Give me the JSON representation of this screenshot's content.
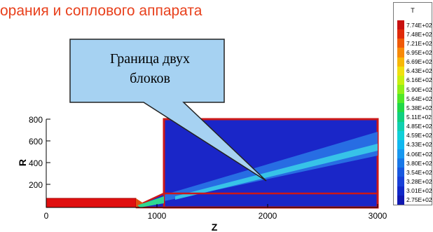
{
  "title": "орания и соплового аппарата",
  "callout": {
    "line1": "Граница двух",
    "line2": "блоков"
  },
  "axes": {
    "xlabel": "Z",
    "ylabel": "R",
    "x_ticks": [
      "0",
      "1000",
      "2000",
      "3000"
    ],
    "y_ticks": [
      "800",
      "600",
      "400",
      "200"
    ]
  },
  "legend": {
    "title": "T",
    "entries": [
      {
        "label": "7.74E+02",
        "color": "#c81010"
      },
      {
        "label": "7.48E+02",
        "color": "#e02a0a"
      },
      {
        "label": "7.21E+02",
        "color": "#f05a08"
      },
      {
        "label": "6.95E+02",
        "color": "#f88a08"
      },
      {
        "label": "6.69E+02",
        "color": "#f8b808"
      },
      {
        "label": "6.43E+02",
        "color": "#f0e010"
      },
      {
        "label": "6.16E+02",
        "color": "#c8f010"
      },
      {
        "label": "5.90E+02",
        "color": "#90f018"
      },
      {
        "label": "5.64E+02",
        "color": "#50e828"
      },
      {
        "label": "5.38E+02",
        "color": "#20d848"
      },
      {
        "label": "5.11E+02",
        "color": "#10d080"
      },
      {
        "label": "4.85E+02",
        "color": "#10d0b0"
      },
      {
        "label": "4.59E+02",
        "color": "#10d0d8"
      },
      {
        "label": "4.33E+02",
        "color": "#10b8f0"
      },
      {
        "label": "4.06E+02",
        "color": "#1898f0"
      },
      {
        "label": "3.80E+02",
        "color": "#1878e8"
      },
      {
        "label": "3.54E+02",
        "color": "#1858e0"
      },
      {
        "label": "3.28E+02",
        "color": "#1840d8"
      },
      {
        "label": "3.01E+02",
        "color": "#1028c8"
      },
      {
        "label": "2.75E+02",
        "color": "#1018b0"
      }
    ]
  }
}
